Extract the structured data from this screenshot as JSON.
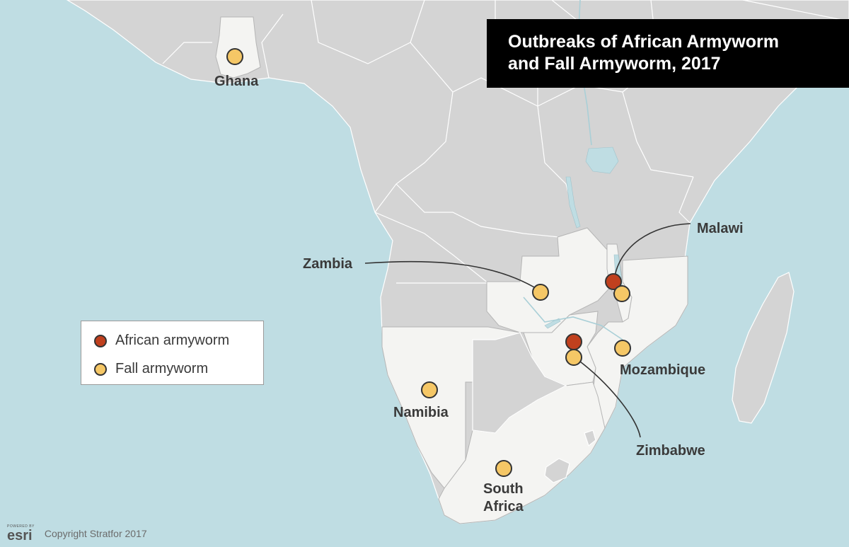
{
  "title": {
    "line1": "Outbreaks of African Armyworm",
    "line2": "and Fall Armyworm, 2017"
  },
  "legend": {
    "items": [
      {
        "label": "African armyworm",
        "color": "#c0401e"
      },
      {
        "label": "Fall armyworm",
        "color": "#f5c766"
      }
    ]
  },
  "countries": {
    "ghana": "Ghana",
    "zambia": "Zambia",
    "malawi": "Malawi",
    "mozambique": "Mozambique",
    "namibia": "Namibia",
    "zimbabwe": "Zimbabwe",
    "south_africa_line1": "South",
    "south_africa_line2": "Africa"
  },
  "footer": {
    "powered_by": "POWERED BY",
    "logo": "esri",
    "copyright": "Copyright Stratfor 2017"
  },
  "colors": {
    "water": "#bfdde3",
    "land": "#d4d4d4",
    "highlighted_land": "#f4f4f2",
    "african_armyworm": "#c0401e",
    "fall_armyworm": "#f5c766"
  }
}
